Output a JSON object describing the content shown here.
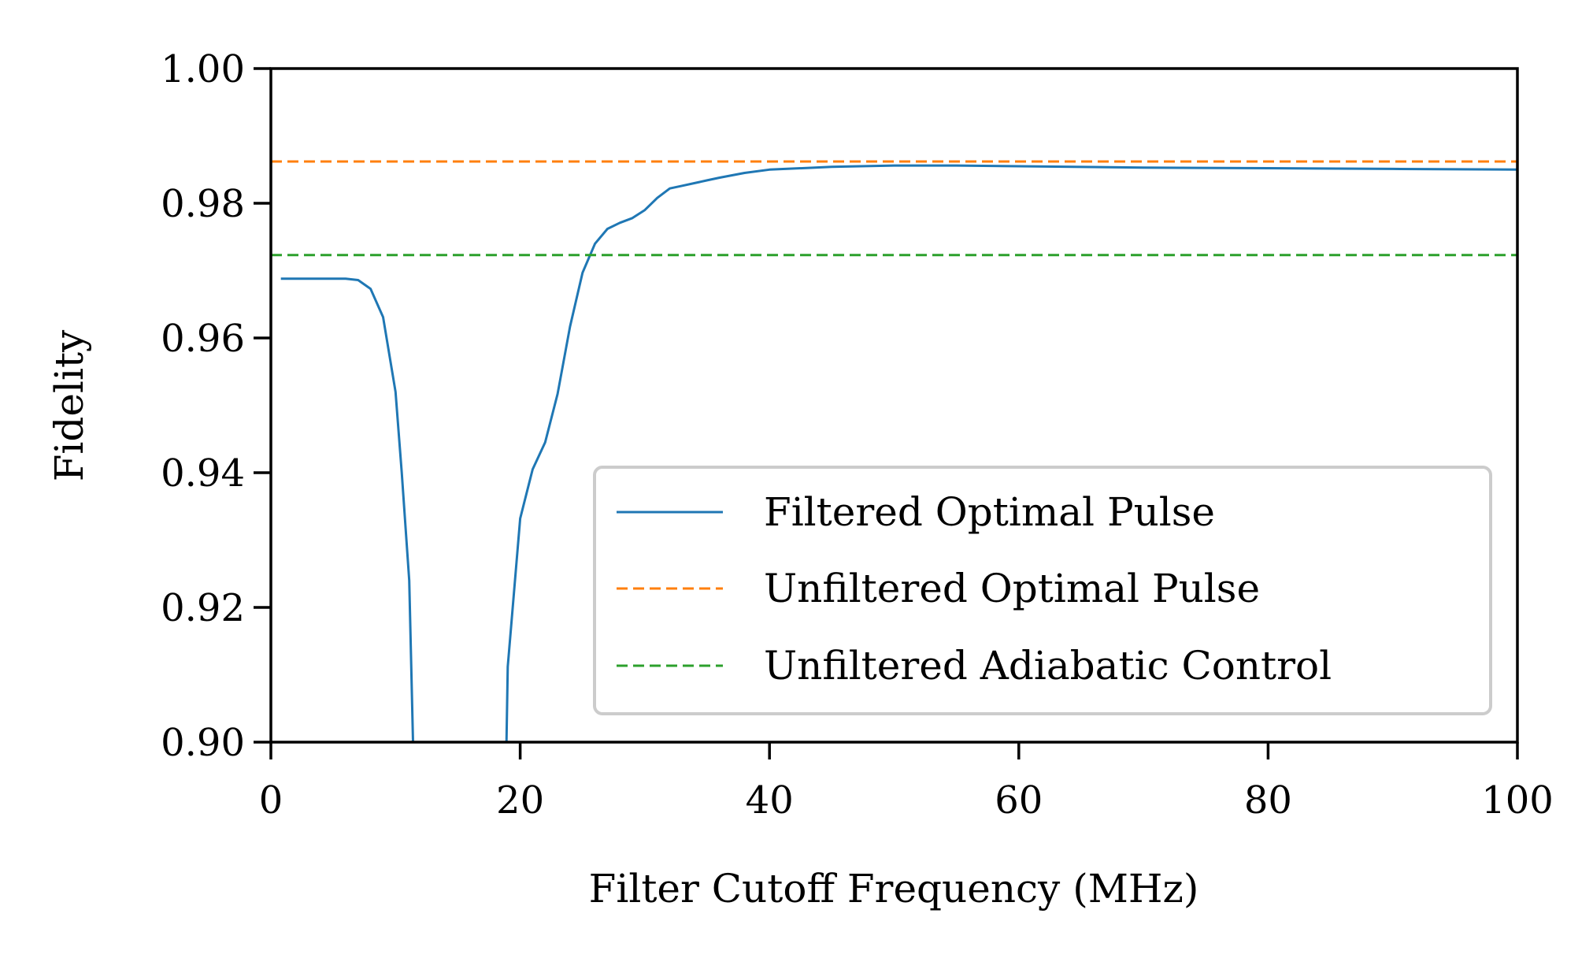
{
  "chart_data": {
    "type": "line",
    "xlabel": "Filter Cutoff Frequency (MHz)",
    "ylabel": "Fidelity",
    "xlim": [
      0,
      100
    ],
    "ylim": [
      0.9,
      1.0
    ],
    "x_ticks": [
      0,
      20,
      40,
      60,
      80,
      100
    ],
    "x_tick_labels": [
      "0",
      "20",
      "40",
      "60",
      "80",
      "100"
    ],
    "y_ticks": [
      0.9,
      0.92,
      0.94,
      0.96,
      0.98,
      1.0
    ],
    "y_tick_labels": [
      "0.90",
      "0.92",
      "0.94",
      "0.96",
      "0.98",
      "1.00"
    ],
    "grid": false,
    "legend_position": "lower-right",
    "series": [
      {
        "name": "Filtered Optimal Pulse",
        "color": "#1f77b4",
        "style": "solid",
        "x": [
          0.8,
          2,
          4,
          6,
          7,
          8,
          9,
          10,
          10.5,
          11.1,
          11.4,
          18.9,
          19.0,
          20,
          21,
          22,
          23,
          24,
          25,
          26,
          27,
          28,
          29,
          30,
          31,
          32,
          33,
          34,
          35,
          36,
          38,
          40,
          45,
          50,
          55,
          60,
          70,
          80,
          90,
          100
        ],
        "values": [
          0.9688,
          0.9688,
          0.9688,
          0.9688,
          0.9686,
          0.9673,
          0.9631,
          0.952,
          0.94,
          0.924,
          0.9,
          0.9,
          0.9112,
          0.9332,
          0.9405,
          0.9445,
          0.9517,
          0.9617,
          0.9697,
          0.974,
          0.9762,
          0.9771,
          0.9778,
          0.979,
          0.9808,
          0.9822,
          0.9826,
          0.983,
          0.9834,
          0.9838,
          0.9845,
          0.985,
          0.9854,
          0.9856,
          0.9856,
          0.9855,
          0.9853,
          0.9852,
          0.9851,
          0.985
        ]
      },
      {
        "name": "Unfiltered Optimal Pulse",
        "color": "#ff7f0e",
        "style": "dashed",
        "x": [
          0,
          100
        ],
        "values": [
          0.9862,
          0.9862
        ]
      },
      {
        "name": "Unfiltered Adiabatic Control",
        "color": "#2ca02c",
        "style": "dashed",
        "x": [
          0,
          100
        ],
        "values": [
          0.9723,
          0.9723
        ]
      }
    ]
  }
}
